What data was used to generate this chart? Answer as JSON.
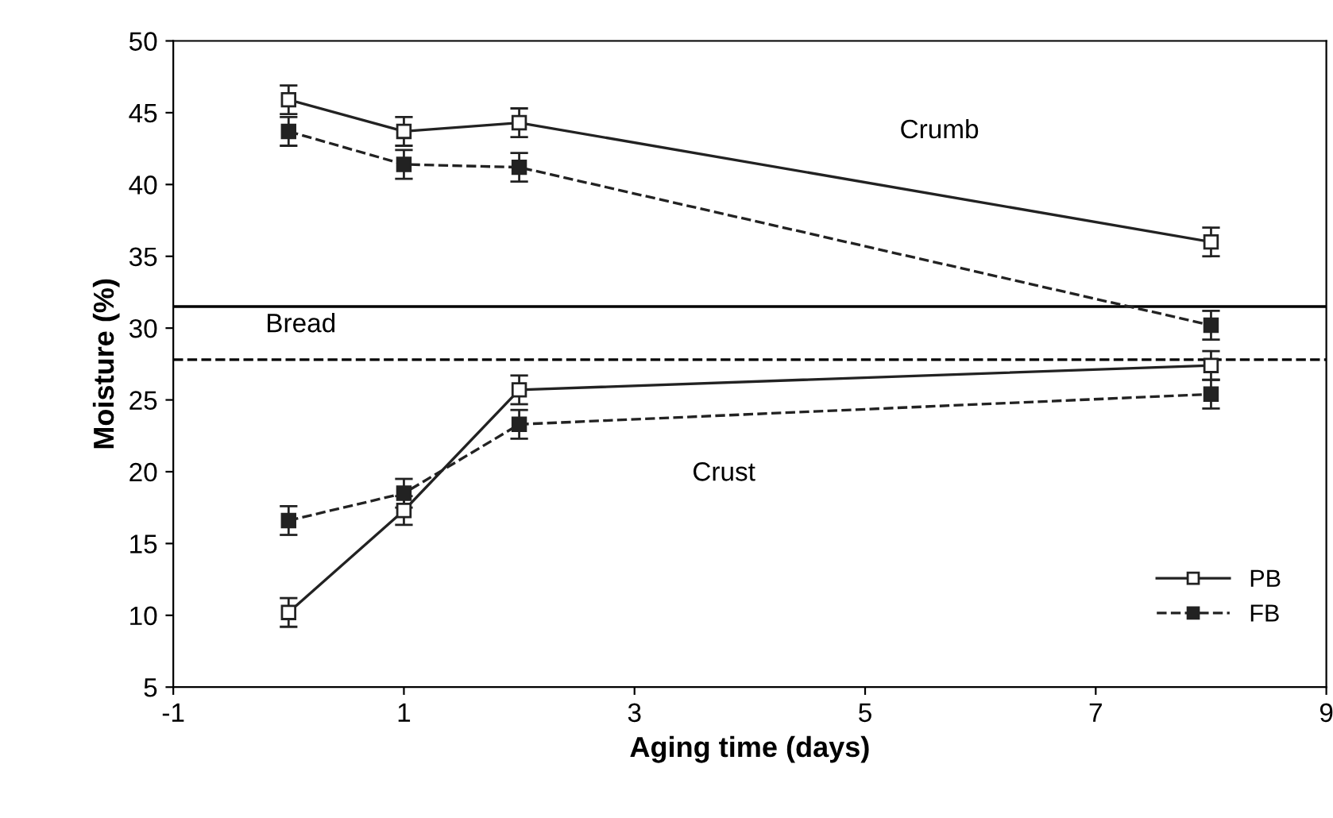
{
  "chart_data": {
    "type": "line",
    "xlabel": "Aging time (days)",
    "ylabel": "Moisture (%)",
    "xlim": [
      -1,
      9
    ],
    "xticks": [
      -1,
      1,
      3,
      5,
      7,
      9
    ],
    "ylim": [
      5,
      50
    ],
    "yticks": [
      5,
      10,
      15,
      20,
      25,
      30,
      35,
      40,
      45,
      50
    ],
    "x": [
      0,
      1,
      2,
      8
    ],
    "grid": false,
    "legend": "bottom right",
    "series": [
      {
        "name": "PB",
        "color": "#222222",
        "values": [
          45.9,
          43.7,
          44.3,
          36.0
        ],
        "errors": [
          1,
          1,
          1,
          1
        ],
        "marker": "square",
        "line_style": "solid"
      },
      {
        "name": "FB",
        "color": "#222222",
        "values": [
          43.7,
          41.4,
          41.2,
          30.2
        ],
        "errors": [
          1,
          1,
          1,
          1
        ],
        "marker": "square",
        "line_style": "dashed"
      },
      {
        "color": "#222222",
        "values": [
          10.2,
          17.3,
          25.7,
          27.4
        ],
        "errors": [
          1,
          1,
          1,
          1
        ],
        "marker": "square",
        "line_style": "solid"
      },
      {
        "color": "#222222",
        "values": [
          16.6,
          18.5,
          23.3,
          25.4
        ],
        "errors": [
          1,
          1,
          1,
          1
        ],
        "marker": "square",
        "line_style": "dashed"
      }
    ],
    "ref_lines": [
      {
        "axis": "y",
        "value": 31.5,
        "line_style": "solid",
        "color": "#000000"
      },
      {
        "axis": "y",
        "value": 27.8,
        "line_style": "dashed",
        "color": "#000000"
      }
    ],
    "annotations": [
      "Crumb",
      "Bread",
      "Crust"
    ]
  }
}
